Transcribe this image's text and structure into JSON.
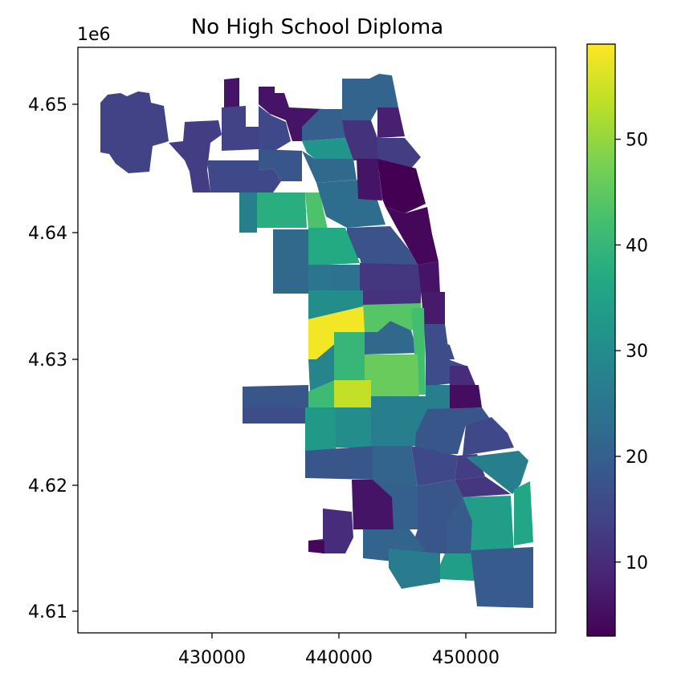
{
  "chart_data": {
    "type": "choropleth",
    "title": "No High School Diploma",
    "offset_label": "1e6",
    "xticks": [
      "430000",
      "440000",
      "450000"
    ],
    "yticks": [
      "4.65",
      "4.64",
      "4.63",
      "4.62",
      "4.61"
    ],
    "colorbar": {
      "ticks": [
        "10",
        "20",
        "30",
        "40",
        "50"
      ],
      "range": [
        3,
        59
      ],
      "colormap": "viridis"
    },
    "regions": [
      {
        "id": "ohare",
        "value": 14
      },
      {
        "id": "edison-park",
        "value": 6
      },
      {
        "id": "norwood-park",
        "value": 13
      },
      {
        "id": "jefferson-park",
        "value": 14
      },
      {
        "id": "forest-glen",
        "value": 6
      },
      {
        "id": "north-park",
        "value": 15
      },
      {
        "id": "west-ridge",
        "value": 20
      },
      {
        "id": "rogers-park",
        "value": 21
      },
      {
        "id": "edgewater",
        "value": 8
      },
      {
        "id": "uptown",
        "value": 13
      },
      {
        "id": "lincoln-square",
        "value": 11
      },
      {
        "id": "albany-park",
        "value": 32
      },
      {
        "id": "portage-park",
        "value": 18
      },
      {
        "id": "irving-park",
        "value": 22
      },
      {
        "id": "dunning",
        "value": 15
      },
      {
        "id": "montclare",
        "value": 27
      },
      {
        "id": "belmont-cragin",
        "value": 38
      },
      {
        "id": "hermosa",
        "value": 43
      },
      {
        "id": "avondale",
        "value": 23
      },
      {
        "id": "north-center",
        "value": 6
      },
      {
        "id": "lake-view",
        "value": 3
      },
      {
        "id": "lincoln-park",
        "value": 4
      },
      {
        "id": "logan-square",
        "value": 17
      },
      {
        "id": "austin",
        "value": 22
      },
      {
        "id": "humboldt-park",
        "value": 37
      },
      {
        "id": "west-town",
        "value": 12
      },
      {
        "id": "near-north",
        "value": 6
      },
      {
        "id": "loop",
        "value": 7
      },
      {
        "id": "west-garfield",
        "value": 25
      },
      {
        "id": "east-garfield",
        "value": 24
      },
      {
        "id": "near-west",
        "value": 11
      },
      {
        "id": "north-lawndale",
        "value": 30
      },
      {
        "id": "south-lawndale",
        "value": 58
      },
      {
        "id": "lower-west-side",
        "value": 44
      },
      {
        "id": "bridgeport",
        "value": 22
      },
      {
        "id": "armour-square",
        "value": 42
      },
      {
        "id": "near-south",
        "value": 16
      },
      {
        "id": "mckinley-park",
        "value": 28
      },
      {
        "id": "douglas",
        "value": 16
      },
      {
        "id": "oakland",
        "value": 16
      },
      {
        "id": "brighton-park",
        "value": 35
      },
      {
        "id": "archer-heights",
        "value": 40
      },
      {
        "id": "new-city",
        "value": 46
      },
      {
        "id": "fuller-park",
        "value": 31
      },
      {
        "id": "grand-boulevard",
        "value": 16
      },
      {
        "id": "kenwood",
        "value": 10
      },
      {
        "id": "hyde-park",
        "value": 5
      },
      {
        "id": "garfield-ridge",
        "value": 18
      },
      {
        "id": "clearing",
        "value": 16
      },
      {
        "id": "west-elsdon",
        "value": 41
      },
      {
        "id": "gage-park",
        "value": 54
      },
      {
        "id": "west-lawn",
        "value": 33
      },
      {
        "id": "chicago-lawn",
        "value": 30
      },
      {
        "id": "west-englewood",
        "value": 27
      },
      {
        "id": "englewood",
        "value": 27
      },
      {
        "id": "washington-park",
        "value": 27
      },
      {
        "id": "woodlawn",
        "value": 18
      },
      {
        "id": "south-shore",
        "value": 15
      },
      {
        "id": "ashburn",
        "value": 18
      },
      {
        "id": "auburn-gresham",
        "value": 21
      },
      {
        "id": "chatham",
        "value": 15
      },
      {
        "id": "avalon-park",
        "value": 13
      },
      {
        "id": "south-chicago",
        "value": 27
      },
      {
        "id": "calumet-heights",
        "value": 12
      },
      {
        "id": "south-deering",
        "value": 34
      },
      {
        "id": "east-side",
        "value": 36
      },
      {
        "id": "beverly",
        "value": 6
      },
      {
        "id": "washington-heights",
        "value": 20
      },
      {
        "id": "roseland",
        "value": 18
      },
      {
        "id": "pullman",
        "value": 19
      },
      {
        "id": "morgan-park",
        "value": 10
      },
      {
        "id": "mount-greenwood",
        "value": 4
      },
      {
        "id": "west-pullman",
        "value": 21
      },
      {
        "id": "riverdale",
        "value": 26
      },
      {
        "id": "hegewisch",
        "value": 19
      }
    ]
  }
}
